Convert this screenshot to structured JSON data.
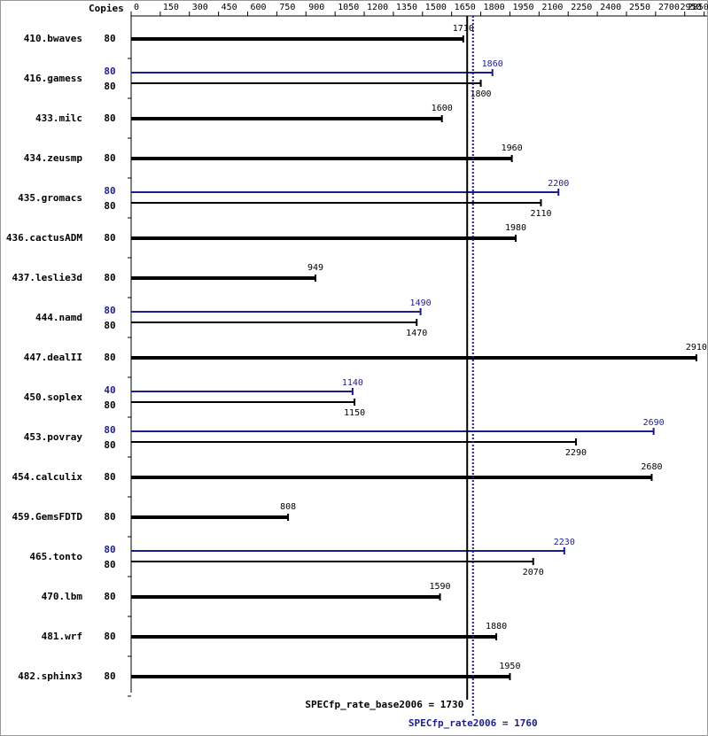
{
  "chart_data": {
    "type": "bar",
    "copies_label": "Copies",
    "categories": [
      "410.bwaves",
      "416.gamess",
      "433.milc",
      "434.zeusmp",
      "435.gromacs",
      "436.cactusADM",
      "437.leslie3d",
      "444.namd",
      "447.dealII",
      "450.soplex",
      "453.povray",
      "454.calculix",
      "459.GemsFDTD",
      "465.tonto",
      "470.lbm",
      "481.wrf",
      "482.sphinx3"
    ],
    "series": [
      {
        "name": "SPECfp_rate_base2006",
        "color": "#000000",
        "copies": [
          80,
          80,
          80,
          80,
          80,
          80,
          80,
          80,
          80,
          80,
          80,
          80,
          80,
          80,
          80,
          80,
          80
        ],
        "values": [
          1710,
          1800,
          1600,
          1960,
          2110,
          1980,
          949,
          1470,
          2910,
          1150,
          2290,
          2680,
          808,
          2070,
          1590,
          1880,
          1950
        ]
      },
      {
        "name": "SPECfp_rate2006",
        "color": "#1c1c8c",
        "copies": [
          null,
          80,
          null,
          null,
          80,
          null,
          null,
          80,
          null,
          40,
          80,
          null,
          null,
          80,
          null,
          null,
          null
        ],
        "values": [
          null,
          1860,
          null,
          null,
          2200,
          null,
          null,
          1490,
          null,
          1140,
          2690,
          null,
          null,
          2230,
          null,
          null,
          null
        ]
      }
    ],
    "summary": [
      {
        "label": "SPECfp_rate_base2006 =",
        "value": 1730
      },
      {
        "label": "SPECfp_rate2006 =",
        "value": 1760
      }
    ],
    "xlim": [
      0,
      2950
    ],
    "xticks": [
      0,
      150,
      300,
      450,
      600,
      750,
      900,
      1050,
      1200,
      1350,
      1500,
      1650,
      1800,
      1950,
      2100,
      2250,
      2400,
      2550,
      2700,
      2850,
      2950
    ]
  }
}
